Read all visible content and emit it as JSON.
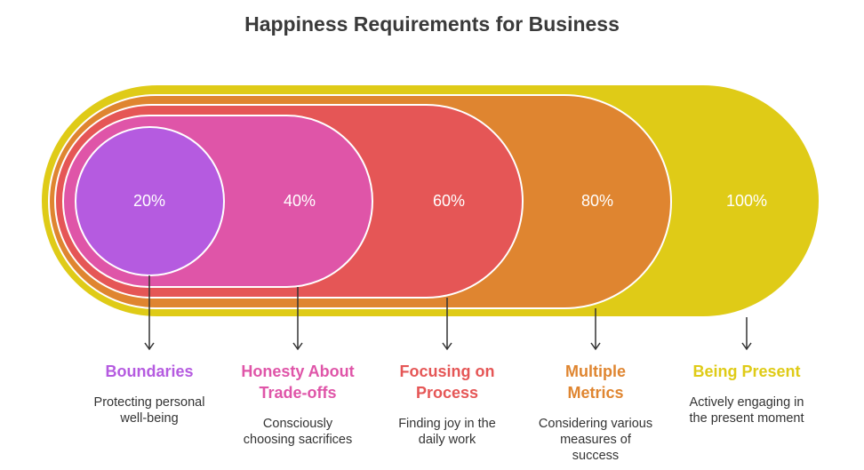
{
  "title": "Happiness Requirements for Business",
  "stages": [
    {
      "percent": "20%",
      "title_lines": [
        "Boundaries"
      ],
      "desc_lines": [
        "Protecting personal",
        "well-being"
      ],
      "color": "#b55be0"
    },
    {
      "percent": "40%",
      "title_lines": [
        "Honesty About",
        "Trade-offs"
      ],
      "desc_lines": [
        "Consciously",
        "choosing sacrifices"
      ],
      "color": "#df55a8"
    },
    {
      "percent": "60%",
      "title_lines": [
        "Focusing on",
        "Process"
      ],
      "desc_lines": [
        "Finding joy in the",
        "daily work"
      ],
      "color": "#e55656"
    },
    {
      "percent": "80%",
      "title_lines": [
        "Multiple",
        "Metrics"
      ],
      "desc_lines": [
        "Considering various",
        "measures of",
        "success"
      ],
      "color": "#df8530"
    },
    {
      "percent": "100%",
      "title_lines": [
        "Being Present"
      ],
      "desc_lines": [
        "Actively engaging in",
        "the present moment"
      ],
      "color": "#dfcb17"
    }
  ]
}
